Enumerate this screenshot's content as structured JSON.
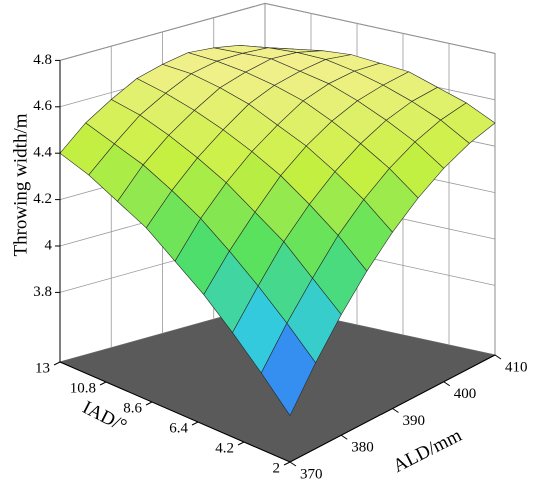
{
  "chart_data": {
    "type": "surface",
    "xlabel": "ALD/mm",
    "ylabel": "IAD/°",
    "zlabel": "Throwing width/m",
    "x": [
      370,
      375,
      380,
      385,
      390,
      395,
      400,
      405,
      410
    ],
    "y": [
      2,
      3.375,
      4.75,
      6.125,
      7.5,
      8.875,
      10.25,
      11.625,
      13
    ],
    "z": [
      [
        3.7,
        3.87,
        4.02,
        4.15,
        4.26,
        4.35,
        4.42,
        4.47,
        4.5
      ],
      [
        3.83,
        3.99,
        4.13,
        4.26,
        4.36,
        4.44,
        4.5,
        4.54,
        4.56
      ],
      [
        3.95,
        4.1,
        4.24,
        4.35,
        4.44,
        4.51,
        4.56,
        4.59,
        4.6
      ],
      [
        4.06,
        4.2,
        4.32,
        4.43,
        4.51,
        4.57,
        4.61,
        4.63,
        4.64
      ],
      [
        4.15,
        4.29,
        4.4,
        4.49,
        4.56,
        4.62,
        4.65,
        4.66,
        4.65
      ],
      [
        4.24,
        4.36,
        4.46,
        4.54,
        4.61,
        4.65,
        4.67,
        4.68,
        4.66
      ],
      [
        4.3,
        4.42,
        4.51,
        4.58,
        4.64,
        4.67,
        4.69,
        4.68,
        4.65
      ],
      [
        4.36,
        4.46,
        4.55,
        4.61,
        4.66,
        4.68,
        4.68,
        4.67,
        4.63
      ],
      [
        4.4,
        4.5,
        4.57,
        4.63,
        4.66,
        4.68,
        4.67,
        4.65,
        4.6
      ]
    ],
    "xlim": [
      370,
      410
    ],
    "xticks": [
      370,
      380,
      390,
      400,
      410
    ],
    "ylim": [
      2,
      13
    ],
    "yticks": [
      2,
      4.2,
      6.4,
      8.6,
      10.8,
      13
    ],
    "zlim": [
      3.5,
      4.8
    ],
    "zticks": [
      3.8,
      4,
      4.2,
      4.4,
      4.6,
      4.8
    ],
    "colormap": [
      "#3a3cff",
      "#30c8e8",
      "#50e060",
      "#c8f040",
      "#f4f090"
    ],
    "grid": true
  }
}
